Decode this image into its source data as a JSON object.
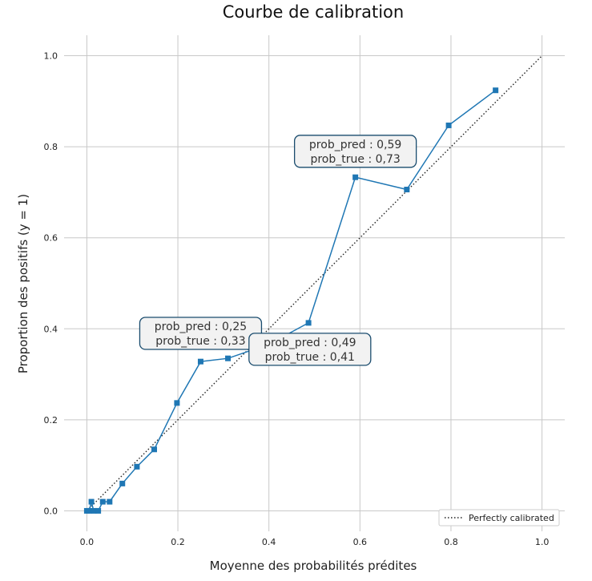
{
  "chart_data": {
    "type": "line",
    "title": "Courbe de calibration",
    "xlabel": "Moyenne des probabilités prédites",
    "ylabel": "Proportion des positifs (y = 1)",
    "xlim": [
      -0.05,
      1.05
    ],
    "ylim": [
      -0.045,
      1.045
    ],
    "xticks": [
      "0.0",
      "0.2",
      "0.4",
      "0.6",
      "0.8",
      "1.0"
    ],
    "yticks": [
      "0.0",
      "0.2",
      "0.4",
      "0.6",
      "0.8",
      "1.0"
    ],
    "grid": true,
    "legend_position": "bottom-right",
    "series": [
      {
        "name": "",
        "color": "#1f77b4",
        "marker": "square",
        "x": [
          0.0,
          0.005,
          0.01,
          0.015,
          0.025,
          0.035,
          0.05,
          0.078,
          0.11,
          0.148,
          0.198,
          0.25,
          0.31,
          0.4,
          0.487,
          0.59,
          0.703,
          0.795,
          0.898
        ],
        "y": [
          0.0,
          0.0,
          0.02,
          0.0,
          0.0,
          0.02,
          0.02,
          0.06,
          0.097,
          0.135,
          0.237,
          0.328,
          0.335,
          0.366,
          0.413,
          0.733,
          0.706,
          0.847,
          0.924
        ]
      },
      {
        "name": "Perfectly calibrated",
        "color": "#222222",
        "style": "dotted",
        "x": [
          0.0,
          1.0
        ],
        "y": [
          0.0,
          1.0
        ]
      }
    ],
    "annotations": [
      {
        "line1": "prob_pred : 0,59",
        "line2": "prob_true : 0,73",
        "x": 0.59,
        "y": 0.79
      },
      {
        "line1": "prob_pred : 0,25",
        "line2": "prob_true : 0,33",
        "x": 0.25,
        "y": 0.39
      },
      {
        "line1": "prob_pred : 0,49",
        "line2": "prob_true : 0,41",
        "x": 0.49,
        "y": 0.355
      }
    ]
  }
}
